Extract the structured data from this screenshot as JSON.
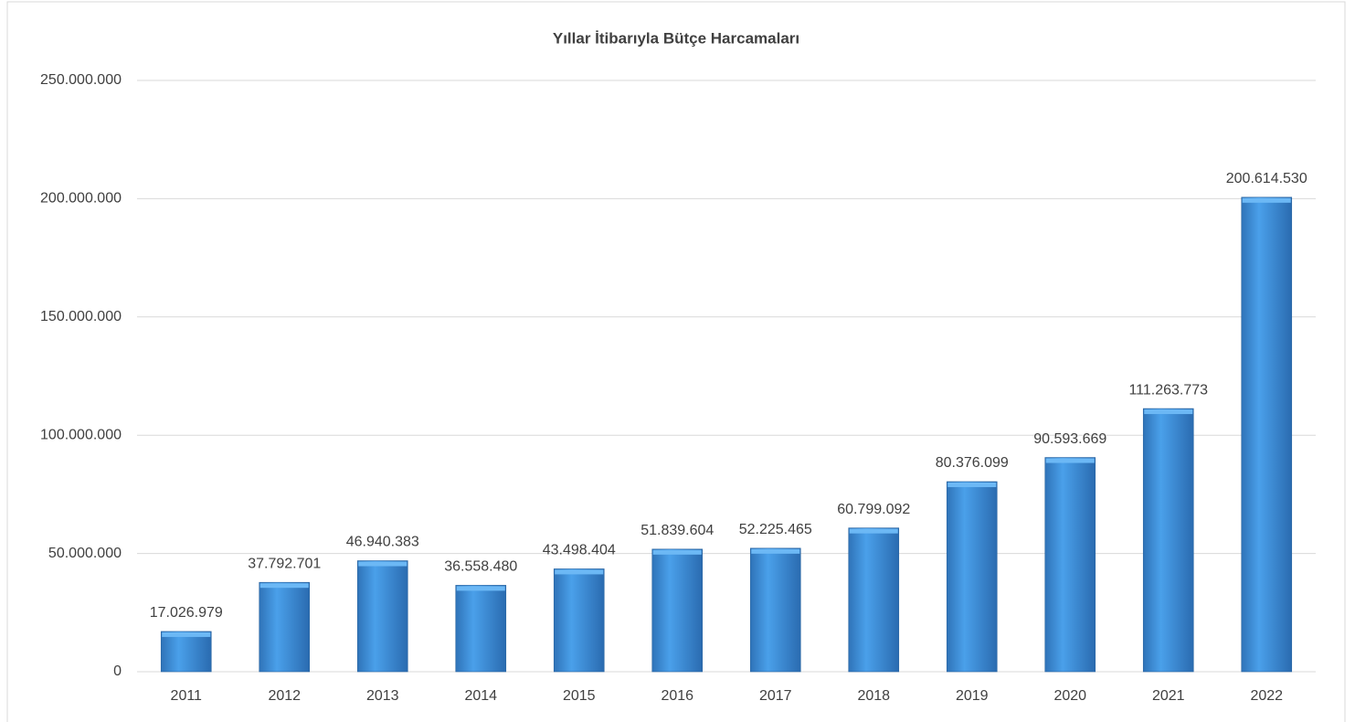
{
  "chart_data": {
    "type": "bar",
    "title": "Yıllar İtibarıyla Bütçe Harcamaları",
    "categories": [
      "2011",
      "2012",
      "2013",
      "2014",
      "2015",
      "2016",
      "2017",
      "2018",
      "2019",
      "2020",
      "2021",
      "2022"
    ],
    "values": [
      17026979,
      37792701,
      46940383,
      36558480,
      43498404,
      51839604,
      52225465,
      60799092,
      80376099,
      90593669,
      111263773,
      200614530
    ],
    "value_labels": [
      "17.026.979",
      "37.792.701",
      "46.940.383",
      "36.558.480",
      "43.498.404",
      "51.839.604",
      "52.225.465",
      "60.799.092",
      "80.376.099",
      "90.593.669",
      "111.263.773",
      "200.614.530"
    ],
    "color": "#3d8fdc",
    "ylim": [
      0,
      250000000
    ],
    "yticks": [
      0,
      {
        "value": 50000000,
        "label": "50.000.000"
      },
      {
        "value": 100000000,
        "label": "100.000.000"
      },
      {
        "value": 150000000,
        "label": "150.000.000"
      },
      {
        "value": 200000000,
        "label": "200.000.000"
      },
      {
        "value": 250000000,
        "label": "250.000.000"
      }
    ],
    "grid": true
  }
}
